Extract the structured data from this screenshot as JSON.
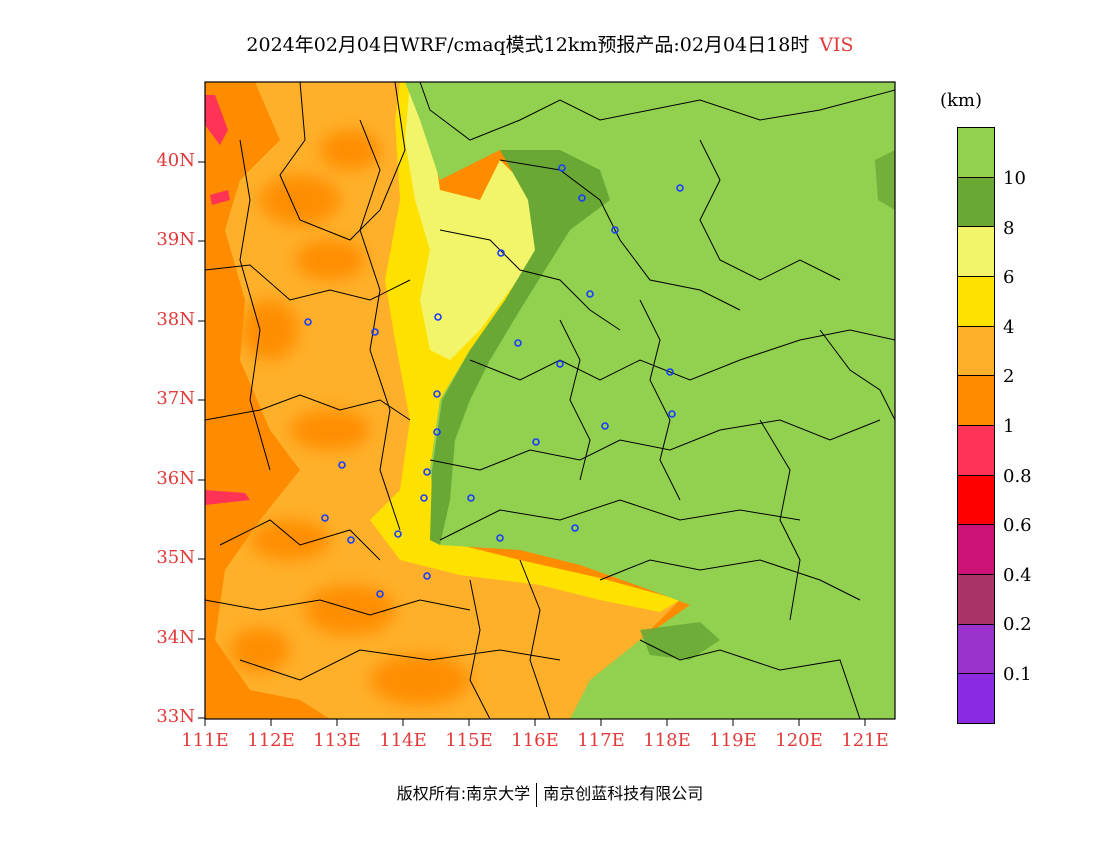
{
  "title": {
    "text": "2024年02月04日WRF/cmaq模式12km预报产品:02月04日18时",
    "variable": "VIS"
  },
  "map": {
    "lat_labels": [
      "40N",
      "39N",
      "38N",
      "37N",
      "36N",
      "35N",
      "34N",
      "33N"
    ],
    "lon_labels": [
      "111E",
      "112E",
      "113E",
      "114E",
      "115E",
      "116E",
      "117E",
      "118E",
      "119E",
      "120E",
      "121E"
    ]
  },
  "legend": {
    "unit": "(km)",
    "labels": [
      "10",
      "8",
      "6",
      "4",
      "2",
      "1",
      "0.8",
      "0.6",
      "0.4",
      "0.2",
      "0.1"
    ],
    "colors": [
      "#92d050",
      "#6aa836",
      "#f2f56a",
      "#ffe100",
      "#ffb02a",
      "#ff8c00",
      "#ff3355",
      "#ff0000",
      "#cc1177",
      "#aa3366",
      "#9933cc",
      "#8a2be2"
    ]
  },
  "credits": {
    "left": "版权所有:南京大学",
    "right": "南京创蓝科技有限公司"
  }
}
